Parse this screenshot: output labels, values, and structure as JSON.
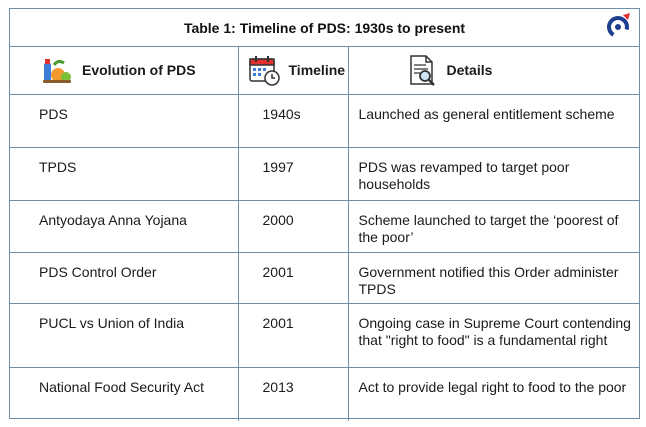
{
  "table": {
    "title": "Table 1: Timeline of PDS: 1930s to present",
    "headers": {
      "evolution": "Evolution of PDS",
      "timeline": "Timeline",
      "details": "Details"
    },
    "rows": [
      {
        "evolution": "PDS",
        "timeline": "1940s",
        "details": "Launched as general entitlement scheme"
      },
      {
        "evolution": "TPDS",
        "timeline": "1997",
        "details": "PDS was revamped to target poor households"
      },
      {
        "evolution": "Antyodaya Anna Yojana",
        "timeline": "2000",
        "details": "Scheme launched to target the ‘poorest of the poor’"
      },
      {
        "evolution": "PDS Control Order",
        "timeline": "2001",
        "details": "Government notified this Order administer TPDS"
      },
      {
        "evolution": "PUCL vs Union of India",
        "timeline": "2001",
        "details": "Ongoing case in Supreme Court contending that \"right to food\" is a fundamental right"
      },
      {
        "evolution": "National Food Security Act",
        "timeline": "2013",
        "details": "Act to provide legal right to food to the poor"
      }
    ]
  },
  "icons": {
    "logo": "brand-logo-icon",
    "evolution": "groceries-icon",
    "timeline": "calendar-clock-icon",
    "details": "document-magnifier-icon"
  },
  "colors": {
    "border": "#6f8fa8",
    "logo_blue": "#1e3f8f",
    "logo_red": "#e0312f"
  }
}
